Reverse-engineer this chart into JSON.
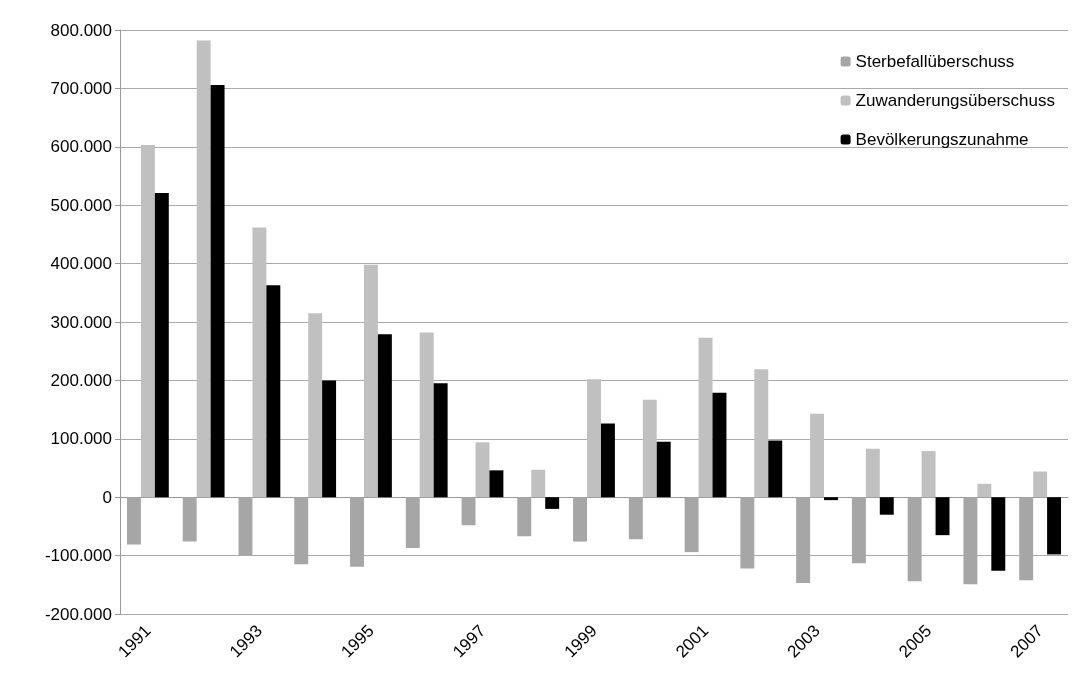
{
  "chart_data": {
    "type": "bar",
    "categories": [
      "1991",
      null,
      "1993",
      null,
      "1995",
      null,
      "1997",
      null,
      "1999",
      null,
      "2001",
      null,
      "2003",
      null,
      "2005",
      null,
      "2007"
    ],
    "series": [
      {
        "name": "Sterbefallüberschuss",
        "color": "#a6a6a6",
        "values": [
          -81000,
          -76000,
          -99000,
          -115000,
          -119000,
          -87000,
          -48000,
          -67000,
          -76000,
          -72000,
          -94000,
          -122000,
          -147000,
          -113000,
          -144000,
          -149000,
          -142000
        ]
      },
      {
        "name": "Zuwanderungsüberschuss",
        "color": "#c0c0c0",
        "values": [
          603000,
          782000,
          462000,
          315000,
          398000,
          282000,
          94000,
          47000,
          202000,
          167000,
          273000,
          219000,
          143000,
          83000,
          79000,
          23000,
          44000
        ]
      },
      {
        "name": "Bevölkerungszunahme",
        "color": "#000000",
        "values": [
          521000,
          706000,
          363000,
          200000,
          279000,
          195000,
          46000,
          -20000,
          126000,
          95000,
          179000,
          97000,
          -5000,
          -30000,
          -65000,
          -126000,
          -98000
        ]
      }
    ],
    "ylim": [
      -200000,
      800000
    ],
    "yticks": [
      {
        "value": -200000,
        "label": "-200.000"
      },
      {
        "value": -100000,
        "label": "-100.000"
      },
      {
        "value": 0,
        "label": "0"
      },
      {
        "value": 100000,
        "label": "100.000"
      },
      {
        "value": 200000,
        "label": "200.000"
      },
      {
        "value": 300000,
        "label": "300.000"
      },
      {
        "value": 400000,
        "label": "400.000"
      },
      {
        "value": 500000,
        "label": "500.000"
      },
      {
        "value": 600000,
        "label": "600.000"
      },
      {
        "value": 700000,
        "label": "700.000"
      },
      {
        "value": 800000,
        "label": "800.000"
      }
    ],
    "grid": "y",
    "legend": "top right"
  }
}
